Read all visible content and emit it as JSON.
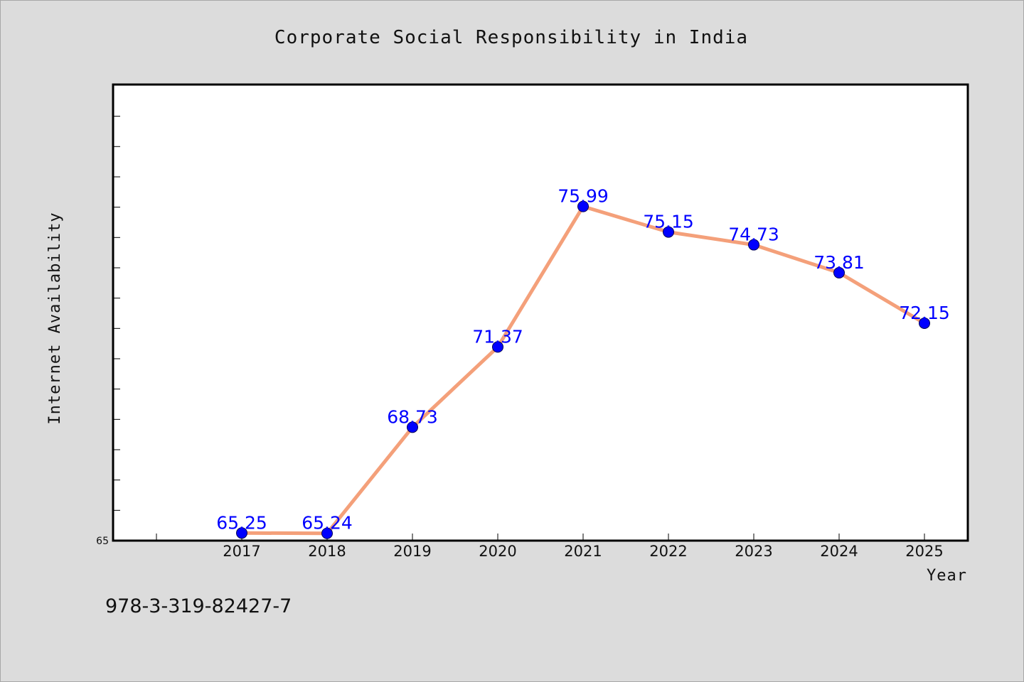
{
  "chart_data": {
    "type": "line",
    "title": "Corporate Social Responsibility in India",
    "xlabel": "Year",
    "ylabel": "Internet Availability",
    "categories": [
      "2017",
      "2018",
      "2019",
      "2020",
      "2021",
      "2022",
      "2023",
      "2024",
      "2025"
    ],
    "series": [
      {
        "values": [
          65.25,
          65.24,
          68.73,
          71.37,
          75.99,
          75.15,
          74.73,
          73.81,
          72.15
        ],
        "line_color": "#f4a07a",
        "marker_color": "#0000ff",
        "label_color": "#0000ff"
      }
    ],
    "ylim": [
      65,
      80
    ],
    "y_tick_labels": [
      "65"
    ],
    "grid": false,
    "legend": "none",
    "plot_background": "#ffffff",
    "figure_background": "#dcdcdc"
  },
  "footer": {
    "code": "978-3-319-82427-7"
  }
}
